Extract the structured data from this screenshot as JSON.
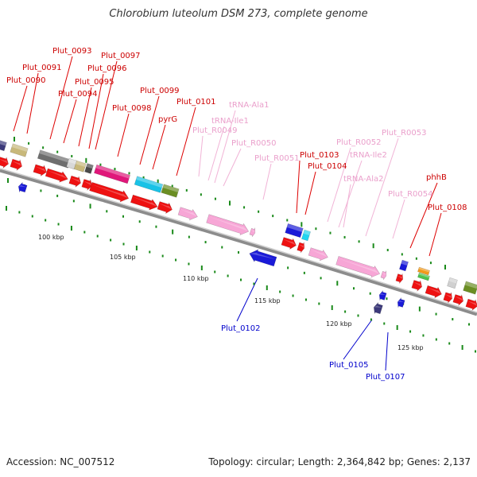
{
  "title": "Chlorobium luteolum DSM 273, complete genome",
  "footer": {
    "accession": "Accession: NC_007512",
    "summary": "Topology: circular; Length: 2,364,842 bp; Genes: 2,137"
  },
  "colors": {
    "protein_coding": "#ee1111",
    "rna": "#f7a6d6",
    "reverse": "#1a1ad8",
    "backbone": "#a8a8a8",
    "tick": "#1a8a1a",
    "label_blue": "#0000cc"
  },
  "scale": {
    "labels": [
      "100 kbp",
      "105 kbp",
      "110 kbp",
      "115 kbp",
      "120 kbp",
      "125 kbp"
    ]
  },
  "labels": {
    "red": [
      "Plut_0090",
      "Plut_0091",
      "Plut_0093",
      "Plut_0094",
      "Plut_0095",
      "Plut_0096",
      "Plut_0097",
      "Plut_0098",
      "Plut_0099",
      "pyrG",
      "Plut_0101",
      "Plut_0103",
      "Plut_0104",
      "phhB",
      "Plut_0108"
    ],
    "pink": [
      "tRNA-Ala1",
      "tRNA-Ile1",
      "Plut_R0049",
      "Plut_R0050",
      "Plut_R0051",
      "Plut_R0052",
      "tRNA-Ile2",
      "tRNA-Ala2",
      "Plut_R0053",
      "Plut_R0054"
    ],
    "blue": [
      "Plut_0102",
      "Plut_0105",
      "Plut_0107"
    ]
  }
}
